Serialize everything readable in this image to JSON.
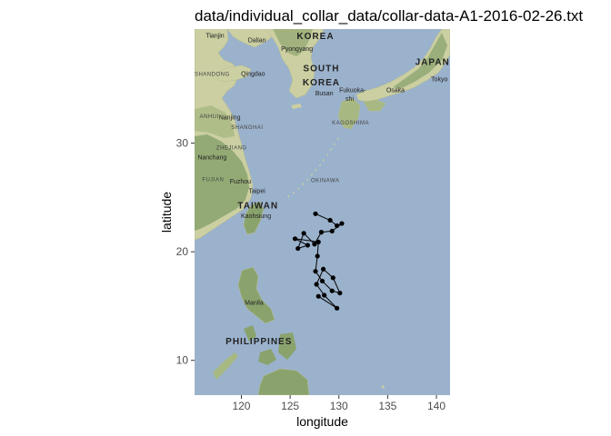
{
  "chart_data": {
    "type": "scatter",
    "title": "data/individual_collar_data/collar-data-A1-2016-02-26.txt",
    "xlabel": "longitude",
    "ylabel": "latitude",
    "xlim": [
      115.2,
      141.4
    ],
    "ylim": [
      6.8,
      40.5
    ],
    "xticks": [
      120,
      125,
      130,
      135,
      140
    ],
    "yticks": [
      10,
      20,
      30
    ],
    "colors": {
      "ocean": "#9bb2cc",
      "land": "#cbcfa2",
      "land_dark": "#7f9b63",
      "track": "#000000"
    },
    "points": [
      {
        "x": 127.6,
        "y": 23.5
      },
      {
        "x": 129.1,
        "y": 22.9
      },
      {
        "x": 129.8,
        "y": 22.4
      },
      {
        "x": 130.3,
        "y": 22.6
      },
      {
        "x": 129.3,
        "y": 21.9
      },
      {
        "x": 128.2,
        "y": 21.8
      },
      {
        "x": 127.5,
        "y": 20.7
      },
      {
        "x": 126.4,
        "y": 21.7
      },
      {
        "x": 125.8,
        "y": 20.3
      },
      {
        "x": 126.8,
        "y": 20.6
      },
      {
        "x": 125.5,
        "y": 21.2
      },
      {
        "x": 127.9,
        "y": 20.9
      },
      {
        "x": 127.8,
        "y": 19.6
      },
      {
        "x": 127.6,
        "y": 18.2
      },
      {
        "x": 128.3,
        "y": 17.3
      },
      {
        "x": 129.3,
        "y": 16.4
      },
      {
        "x": 130.1,
        "y": 16.2
      },
      {
        "x": 129.4,
        "y": 17.6
      },
      {
        "x": 128.4,
        "y": 18.4
      },
      {
        "x": 127.7,
        "y": 17.0
      },
      {
        "x": 128.5,
        "y": 16.0
      },
      {
        "x": 129.8,
        "y": 14.8
      },
      {
        "x": 127.9,
        "y": 15.9
      }
    ]
  },
  "map": {
    "country_labels": [
      {
        "text": "KOREA",
        "lon": 127.6,
        "lat": 39.6
      },
      {
        "text": "SOUTH",
        "lon": 128.2,
        "lat": 36.6
      },
      {
        "text": "KOREA",
        "lon": 128.2,
        "lat": 35.3
      },
      {
        "text": "JAPAN",
        "lon": 139.6,
        "lat": 37.2
      },
      {
        "text": "TAIWAN",
        "lon": 121.7,
        "lat": 24.0
      },
      {
        "text": "PHILIPPINES",
        "lon": 121.8,
        "lat": 11.5
      }
    ],
    "city_labels": [
      {
        "text": "Tianjin",
        "lon": 117.3,
        "lat": 39.7
      },
      {
        "text": "Dalian",
        "lon": 121.6,
        "lat": 39.3
      },
      {
        "text": "Pyongyang",
        "lon": 125.7,
        "lat": 38.5
      },
      {
        "text": "Qingdao",
        "lon": 121.2,
        "lat": 36.2
      },
      {
        "text": "Busan",
        "lon": 128.5,
        "lat": 34.4
      },
      {
        "text": "Fukuoka-",
        "lon": 131.4,
        "lat": 34.7
      },
      {
        "text": "shi",
        "lon": 131.1,
        "lat": 33.9
      },
      {
        "text": "Osaka",
        "lon": 135.8,
        "lat": 34.7
      },
      {
        "text": "Tokyo",
        "lon": 140.3,
        "lat": 35.7
      },
      {
        "text": "Nanjing",
        "lon": 118.8,
        "lat": 32.2
      },
      {
        "text": "Nanchang",
        "lon": 117.0,
        "lat": 28.5
      },
      {
        "text": "Fuzhou",
        "lon": 119.9,
        "lat": 26.3
      },
      {
        "text": "Taipei",
        "lon": 121.6,
        "lat": 25.4
      },
      {
        "text": "Kaohsiung",
        "lon": 121.5,
        "lat": 23.1
      },
      {
        "text": "Manila",
        "lon": 121.3,
        "lat": 15.1
      }
    ],
    "region_labels": [
      {
        "text": "SHANDONG",
        "lon": 117.0,
        "lat": 36.2
      },
      {
        "text": "ANHUI",
        "lon": 116.7,
        "lat": 32.3
      },
      {
        "text": "SHANGHAI",
        "lon": 120.6,
        "lat": 31.3
      },
      {
        "text": "ZHEJIANG",
        "lon": 119.0,
        "lat": 29.4
      },
      {
        "text": "FUJIAN",
        "lon": 117.1,
        "lat": 26.5
      },
      {
        "text": "KAGOSHIMA",
        "lon": 131.2,
        "lat": 31.7
      },
      {
        "text": "OKINAWA",
        "lon": 128.6,
        "lat": 26.4
      }
    ]
  }
}
